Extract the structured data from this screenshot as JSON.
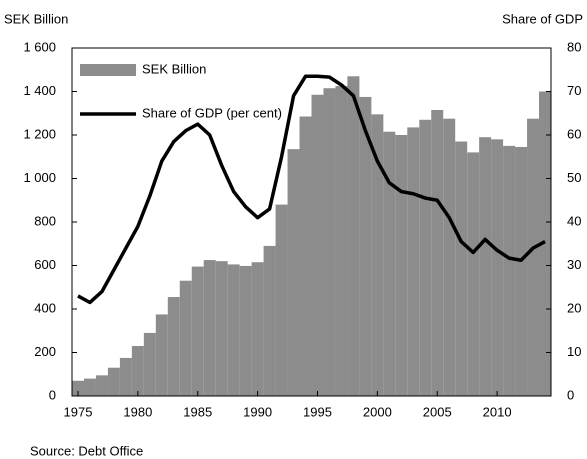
{
  "chart_data": {
    "type": "combo",
    "ylabel": "SEK Billion",
    "y2label": "Share of GDP",
    "source": "Source: Debt Office",
    "x": [
      1975,
      1976,
      1977,
      1978,
      1979,
      1980,
      1981,
      1982,
      1983,
      1984,
      1985,
      1986,
      1987,
      1988,
      1989,
      1990,
      1991,
      1992,
      1993,
      1994,
      1995,
      1996,
      1997,
      1998,
      1999,
      2000,
      2001,
      2002,
      2003,
      2004,
      2005,
      2006,
      2007,
      2008,
      2009,
      2010,
      2011,
      2012,
      2013,
      2014
    ],
    "series": [
      {
        "name": "SEK Billion",
        "type": "bar",
        "color": "#8c8c8c",
        "values": [
          70,
          80,
          95,
          130,
          175,
          230,
          290,
          375,
          455,
          530,
          595,
          625,
          620,
          605,
          598,
          615,
          690,
          880,
          1135,
          1285,
          1385,
          1415,
          1425,
          1470,
          1375,
          1295,
          1215,
          1200,
          1235,
          1270,
          1315,
          1275,
          1170,
          1120,
          1190,
          1180,
          1150,
          1145,
          1275,
          1400
        ]
      },
      {
        "name": "Share of GDP (per cent)",
        "type": "line",
        "color": "#000000",
        "axis": "y2",
        "values": [
          23,
          21.5,
          24,
          29,
          34,
          39,
          46,
          54,
          58.5,
          61,
          62.5,
          60,
          53,
          47,
          43.5,
          41,
          43,
          55,
          69,
          73.5,
          73.5,
          73.3,
          71.5,
          69,
          61,
          54,
          49,
          47,
          46.5,
          45.5,
          45,
          41,
          35.5,
          33,
          36,
          33.5,
          31.7,
          31.2,
          34,
          35.5
        ]
      }
    ],
    "xlim": [
      1974.5,
      2014.5
    ],
    "xticks": [
      1975,
      1980,
      1985,
      1990,
      1995,
      2000,
      2005,
      2010
    ],
    "ylim": [
      0,
      1600
    ],
    "yticks": [
      0,
      200,
      400,
      600,
      800,
      {
        "value": 1000,
        "label": "1 000"
      },
      {
        "value": 1200,
        "label": "1 200"
      },
      {
        "value": 1400,
        "label": "1 400"
      },
      {
        "value": 1600,
        "label": "1 600"
      }
    ],
    "y2lim": [
      0,
      80
    ],
    "y2ticks": [
      0,
      10,
      20,
      30,
      40,
      50,
      60,
      70,
      80
    ],
    "legend": "upper left"
  }
}
